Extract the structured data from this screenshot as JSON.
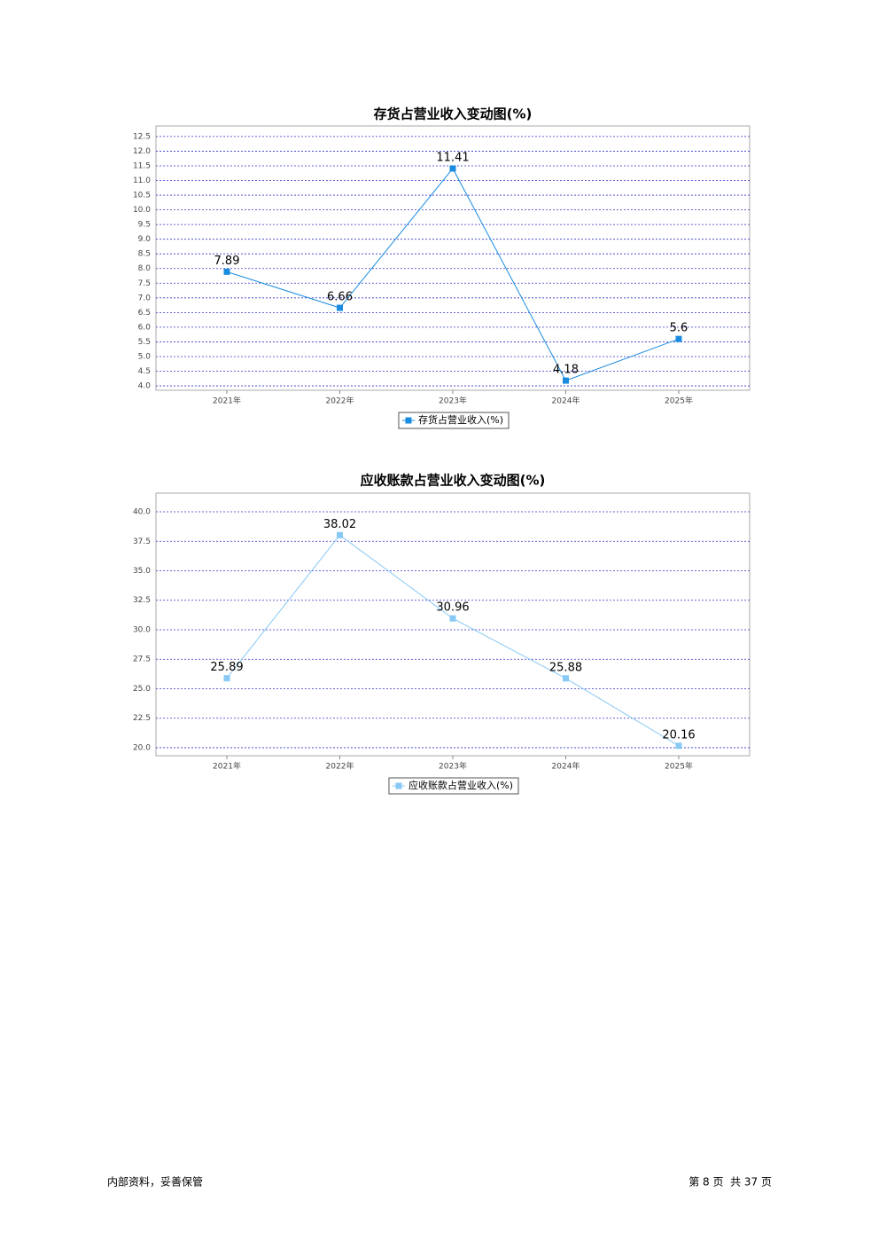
{
  "chart_data": [
    {
      "type": "line",
      "title": "存货占营业收入变动图(%)",
      "categories": [
        "2021年",
        "2022年",
        "2023年",
        "2024年",
        "2025年"
      ],
      "series": [
        {
          "name": "存货占营业收入(%)",
          "color": "#1a8ce0",
          "values": [
            7.89,
            6.66,
            11.41,
            4.18,
            5.6
          ]
        }
      ],
      "ylim": [
        3.85,
        12.86
      ],
      "yticks": [
        {
          "value": 4,
          "label": "4.0"
        },
        4.5,
        {
          "value": 5,
          "label": "5.0"
        },
        5.5,
        {
          "value": 6,
          "label": "6.0"
        },
        6.5,
        {
          "value": 7,
          "label": "7.0"
        },
        7.5,
        {
          "value": 8,
          "label": "8.0"
        },
        8.5,
        {
          "value": 9,
          "label": "9.0"
        },
        9.5,
        {
          "value": 10,
          "label": "10.0"
        },
        10.5,
        {
          "value": 11,
          "label": "11.0"
        },
        11.5,
        {
          "value": 12,
          "label": "12.0"
        },
        12.5
      ],
      "grid": true,
      "legend": "bottom"
    },
    {
      "type": "line",
      "title": "应收账款占营业收入变动图(%)",
      "categories": [
        "2021年",
        "2022年",
        "2023年",
        "2024年",
        "2025年"
      ],
      "series": [
        {
          "name": "应收账款占营业收入(%)",
          "color": "#87c8f5",
          "values": [
            25.89,
            38.02,
            30.96,
            25.88,
            20.16
          ]
        }
      ],
      "ylim": [
        19.32,
        41.58
      ],
      "yticks": [
        {
          "value": 20,
          "label": "20.0"
        },
        22.5,
        {
          "value": 25,
          "label": "25.0"
        },
        27.5,
        {
          "value": 30,
          "label": "30.0"
        },
        32.5,
        {
          "value": 35,
          "label": "35.0"
        },
        37.5,
        {
          "value": 40,
          "label": "40.0"
        }
      ],
      "grid": true,
      "legend": "bottom"
    }
  ],
  "footer": {
    "left": "内部资料，妥善保管",
    "right": "第 8 页  共 37 页"
  }
}
